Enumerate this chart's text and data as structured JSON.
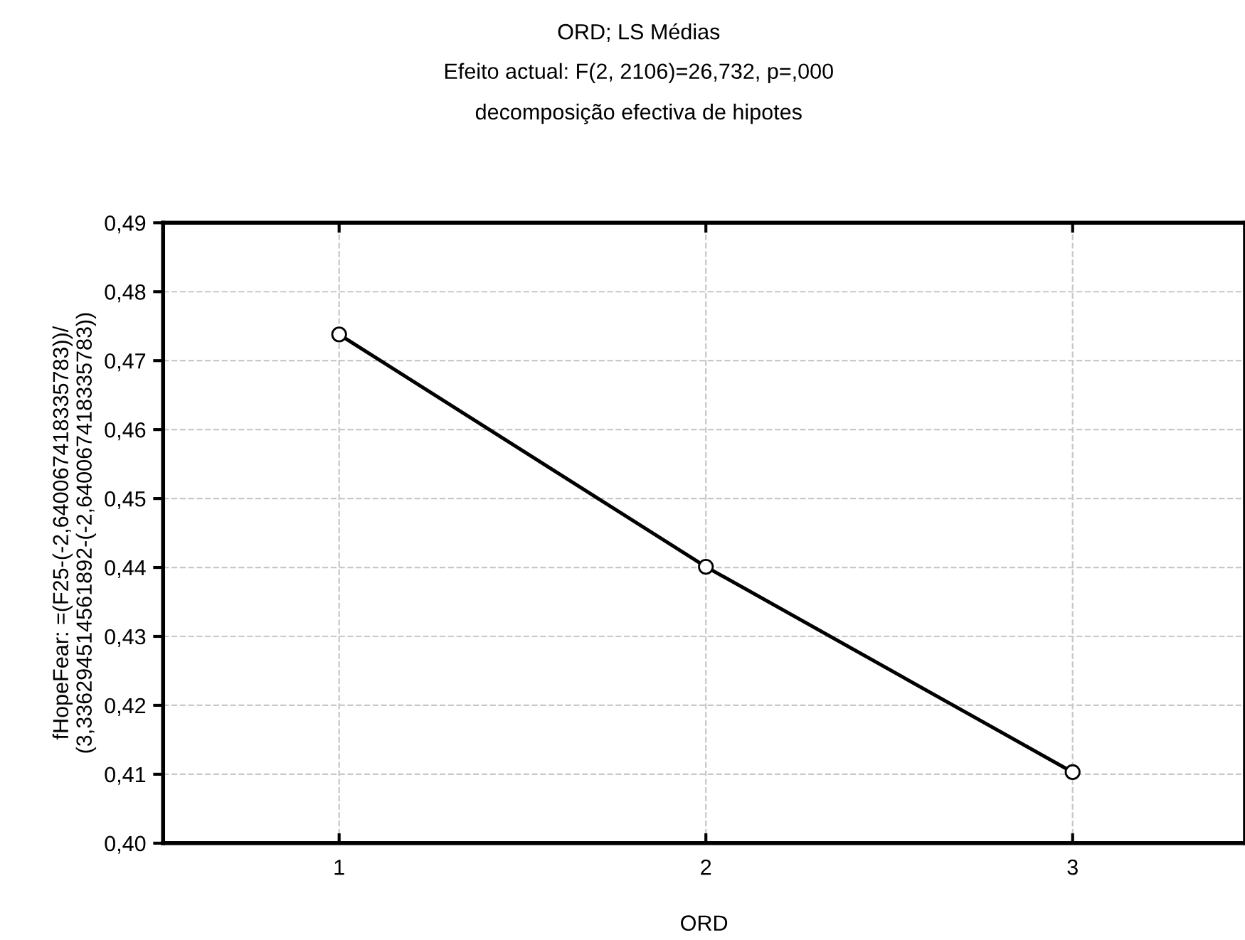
{
  "chart_data": {
    "type": "line",
    "title": "ORD; LS Médias",
    "subtitle": "Efeito actual: F(2, 2106)=26,732, p=,000\ndecomposição efectiva de hipotes",
    "xlabel": "ORD",
    "ylabel": "fHopeFear: =(F25-(-2,640067418335783))/\n(3,336294514561892-(-2,640067418335783))",
    "categories": [
      "1",
      "2",
      "3"
    ],
    "series": [
      {
        "color": "#000000",
        "values": [
          0.4738,
          0.4401,
          0.4103
        ]
      }
    ],
    "ylim": [
      0.4,
      0.49
    ],
    "yticks": [
      {
        "value": 0.4,
        "label": "0,40"
      },
      {
        "value": 0.41,
        "label": "0,41"
      },
      {
        "value": 0.42,
        "label": "0,42"
      },
      {
        "value": 0.43,
        "label": "0,43"
      },
      {
        "value": 0.44,
        "label": "0,44"
      },
      {
        "value": 0.45,
        "label": "0,45"
      },
      {
        "value": 0.46,
        "label": "0,46"
      },
      {
        "value": 0.47,
        "label": "0,47"
      },
      {
        "value": 0.48,
        "label": "0,48"
      },
      {
        "value": 0.49,
        "label": "0,49"
      }
    ],
    "grid": true,
    "marker": "circle",
    "line_style": "solid"
  }
}
